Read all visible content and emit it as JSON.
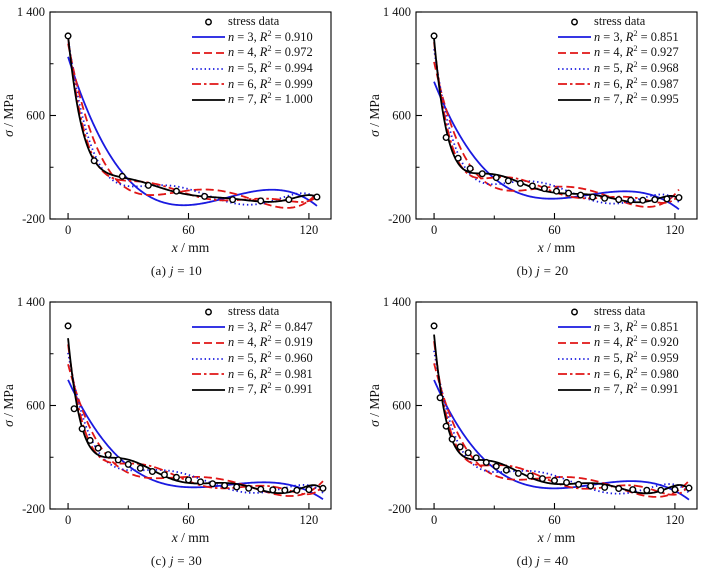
{
  "figure": {
    "background": "#ffffff",
    "ylabel": "σ / MPa",
    "xlabel": "x / mm",
    "scatter_label": "stress data",
    "colors": {
      "blue": "#1a1ae0",
      "red": "#e01616",
      "black": "#000000"
    },
    "axes": {
      "xlim": [
        -9,
        131
      ],
      "ylim": [
        -200,
        1400
      ],
      "xticks": [
        0,
        60,
        120
      ],
      "xtick_labels": [
        "0",
        "60",
        "120"
      ],
      "xminor": [
        30,
        90
      ],
      "yticks": [
        -200,
        600,
        1400
      ],
      "ytick_labels": [
        "-200",
        "600",
        "1 400"
      ],
      "yminor": [
        200,
        1000
      ],
      "grid": false,
      "legend_position": "top-right-inside"
    }
  },
  "chart_data": [
    {
      "id": "a",
      "type": "scatter",
      "caption": "(a) j = 10",
      "legend": [
        "stress data",
        "n = 3, R^2 = 0.910",
        "n = 4, R^2 = 0.972",
        "n = 5, R^2 = 0.994",
        "n = 6, R^2 = 0.999",
        "n = 7, R^2 = 1.000"
      ],
      "series": [
        {
          "label": "n = 3, R^2 = 0.910",
          "degree": 3,
          "r2": "0.910",
          "color": "blue",
          "style": "solid"
        },
        {
          "label": "n = 4, R^2 = 0.972",
          "degree": 4,
          "r2": "0.972",
          "color": "red",
          "style": "dashed"
        },
        {
          "label": "n = 5, R^2 = 0.994",
          "degree": 5,
          "r2": "0.994",
          "color": "blue",
          "style": "dotted"
        },
        {
          "label": "n = 6, R^2 = 0.999",
          "degree": 6,
          "r2": "0.999",
          "color": "red",
          "style": "dashdot"
        },
        {
          "label": "n = 7, R^2 = 1.000",
          "degree": 7,
          "r2": "1.000",
          "color": "black",
          "style": "solid"
        }
      ],
      "points": {
        "x": [
          0,
          13,
          27,
          40,
          54,
          68,
          82,
          96,
          110,
          124
        ],
        "y": [
          1215,
          250,
          130,
          60,
          15,
          -25,
          -50,
          -60,
          -50,
          -30
        ]
      }
    },
    {
      "id": "b",
      "type": "scatter",
      "caption": "(b) j = 20",
      "legend": [
        "stress data",
        "n = 3, R^2 = 0.851",
        "n = 4, R^2 = 0.927",
        "n = 5, R^2 = 0.968",
        "n = 6, R^2 = 0.987",
        "n = 7, R^2 = 0.995"
      ],
      "series": [
        {
          "label": "n = 3, R^2 = 0.851",
          "degree": 3,
          "r2": "0.851",
          "color": "blue",
          "style": "solid"
        },
        {
          "label": "n = 4, R^2 = 0.927",
          "degree": 4,
          "r2": "0.927",
          "color": "red",
          "style": "dashed"
        },
        {
          "label": "n = 5, R^2 = 0.968",
          "degree": 5,
          "r2": "0.968",
          "color": "blue",
          "style": "dotted"
        },
        {
          "label": "n = 6, R^2 = 0.987",
          "degree": 6,
          "r2": "0.987",
          "color": "red",
          "style": "dashdot"
        },
        {
          "label": "n = 7, R^2 = 0.995",
          "degree": 7,
          "r2": "0.995",
          "color": "black",
          "style": "solid"
        }
      ],
      "points": {
        "x": [
          0,
          6,
          12,
          18,
          24,
          31,
          37,
          43,
          49,
          55,
          61,
          67,
          73,
          79,
          85,
          92,
          98,
          104,
          110,
          116,
          122
        ],
        "y": [
          1215,
          430,
          270,
          190,
          150,
          120,
          95,
          75,
          55,
          35,
          15,
          0,
          -15,
          -30,
          -40,
          -50,
          -55,
          -55,
          -50,
          -45,
          -35
        ]
      }
    },
    {
      "id": "c",
      "type": "scatter",
      "caption": "(c) j = 30",
      "legend": [
        "stress data",
        "n = 3, R^2 = 0.847",
        "n = 4, R^2 = 0.919",
        "n = 5, R^2 = 0.960",
        "n = 6, R^2 = 0.981",
        "n = 7, R^2 = 0.991"
      ],
      "series": [
        {
          "label": "n = 3, R^2 = 0.847",
          "degree": 3,
          "r2": "0.847",
          "color": "blue",
          "style": "solid"
        },
        {
          "label": "n = 4, R^2 = 0.919",
          "degree": 4,
          "r2": "0.919",
          "color": "red",
          "style": "dashed"
        },
        {
          "label": "n = 5, R^2 = 0.960",
          "degree": 5,
          "r2": "0.960",
          "color": "blue",
          "style": "dotted"
        },
        {
          "label": "n = 6, R^2 = 0.981",
          "degree": 6,
          "r2": "0.981",
          "color": "red",
          "style": "dashdot"
        },
        {
          "label": "n = 7, R^2 = 0.991",
          "degree": 7,
          "r2": "0.991",
          "color": "black",
          "style": "solid"
        }
      ],
      "points": {
        "x": [
          0,
          3,
          7,
          11,
          15,
          20,
          25,
          30,
          36,
          42,
          48,
          54,
          60,
          66,
          72,
          78,
          84,
          90,
          96,
          102,
          108,
          114,
          120,
          127
        ],
        "y": [
          1215,
          575,
          420,
          330,
          270,
          220,
          180,
          145,
          115,
          90,
          65,
          45,
          25,
          10,
          -5,
          -18,
          -30,
          -40,
          -47,
          -52,
          -55,
          -55,
          -50,
          -40
        ]
      }
    },
    {
      "id": "d",
      "type": "scatter",
      "caption": "(d) j = 40",
      "legend": [
        "stress data",
        "n = 3, R^2 = 0.851",
        "n = 4, R^2 = 0.920",
        "n = 5, R^2 = 0.959",
        "n = 6, R^2 = 0.980",
        "n = 7, R^2 = 0.991"
      ],
      "series": [
        {
          "label": "n = 3, R^2 = 0.851",
          "degree": 3,
          "r2": "0.851",
          "color": "blue",
          "style": "solid"
        },
        {
          "label": "n = 4, R^2 = 0.920",
          "degree": 4,
          "r2": "0.920",
          "color": "red",
          "style": "dashed"
        },
        {
          "label": "n = 5, R^2 = 0.959",
          "degree": 5,
          "r2": "0.959",
          "color": "blue",
          "style": "dotted"
        },
        {
          "label": "n = 6, R^2 = 0.980",
          "degree": 6,
          "r2": "0.980",
          "color": "red",
          "style": "dashdot"
        },
        {
          "label": "n = 7, R^2 = 0.991",
          "degree": 7,
          "r2": "0.991",
          "color": "black",
          "style": "solid"
        }
      ],
      "points": {
        "x": [
          0,
          3,
          6,
          9,
          13,
          17,
          21,
          26,
          31,
          36,
          42,
          48,
          54,
          60,
          66,
          72,
          78,
          85,
          92,
          99,
          106,
          113,
          120,
          127
        ],
        "y": [
          1215,
          660,
          440,
          340,
          280,
          235,
          195,
          160,
          130,
          100,
          75,
          55,
          35,
          20,
          5,
          -10,
          -22,
          -33,
          -42,
          -50,
          -55,
          -55,
          -50,
          -38
        ]
      }
    }
  ]
}
